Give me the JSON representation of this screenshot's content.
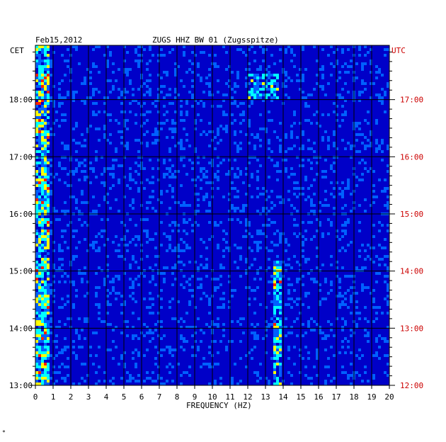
{
  "header": {
    "date": "Feb15,2012",
    "station": "ZUGS HHZ BW 01 (Zugsspitze)",
    "left_zone": "CET",
    "right_zone": "UTC"
  },
  "footnote": "*",
  "colors": {
    "background": "#0000c8",
    "grid": "#000000",
    "utc_text": "#cc0000",
    "hot": "#ff2000",
    "warm": "#ffff00",
    "mid": "#00ffff",
    "low": "#0060ff"
  },
  "chart_data": {
    "type": "heatmap",
    "title": "ZUGS HHZ BW 01 (Zugsspitze)",
    "xlabel": "FREQUENCY (HZ)",
    "xlim": [
      0,
      20
    ],
    "x_ticks": [
      "0",
      "1",
      "2",
      "3",
      "4",
      "5",
      "6",
      "7",
      "8",
      "9",
      "10",
      "11",
      "12",
      "13",
      "14",
      "15",
      "16",
      "17",
      "18",
      "19",
      "20"
    ],
    "ylim_cet_hours": [
      13.0,
      18.95
    ],
    "y_ticks_cet": [
      "13:00",
      "14:00",
      "15:00",
      "16:00",
      "17:00",
      "18:00"
    ],
    "y_ticks_utc": [
      "12:00",
      "13:00",
      "14:00",
      "15:00",
      "16:00",
      "17:00"
    ],
    "grid": true,
    "features": [
      {
        "band_hz": [
          0.0,
          0.8
        ],
        "time_cet": [
          13.0,
          18.95
        ],
        "intensity": "high"
      },
      {
        "band_hz": [
          13.4,
          13.9
        ],
        "time_cet": [
          13.0,
          15.2
        ],
        "intensity": "high"
      },
      {
        "band_hz": [
          12.0,
          13.8
        ],
        "time_cet": [
          18.0,
          18.45
        ],
        "intensity": "medium"
      }
    ]
  }
}
